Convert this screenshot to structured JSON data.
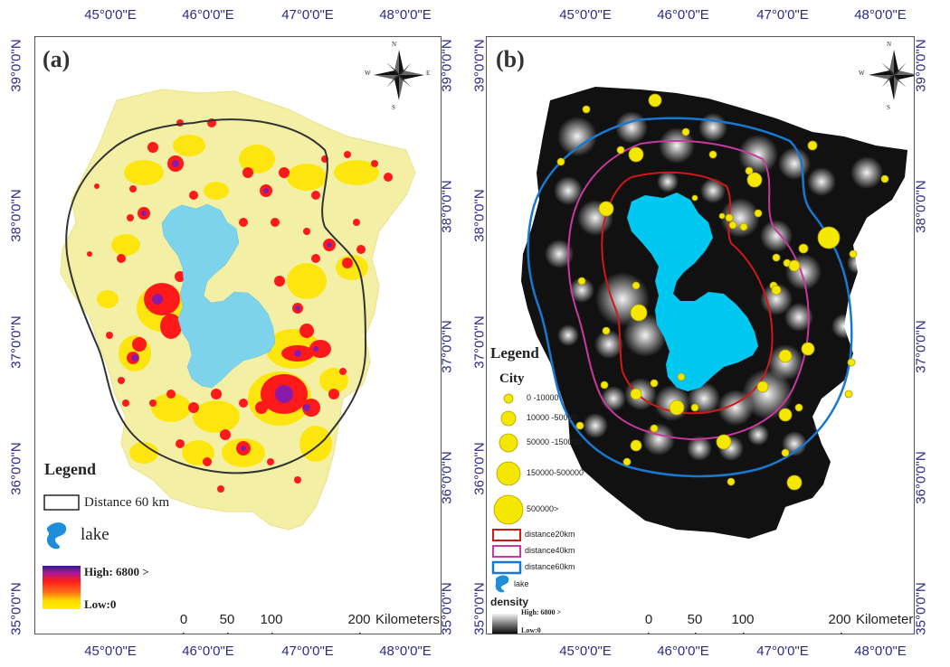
{
  "panel_a": {
    "label": "(a)",
    "top_ticks": [
      "45°0'0\"E",
      "46°0'0\"E",
      "47°0'0\"E",
      "48°0'0\"E"
    ],
    "bottom_ticks": [
      "45°0'0\"E",
      "46°0'0\"E",
      "47°0'0\"E",
      "48°0'0\"E"
    ],
    "left_ticks": [
      "39°0'0\"N",
      "38°0'0\"N",
      "37°0'0\"N",
      "36°0'0\"N",
      "35°0'0\"N"
    ],
    "right_ticks": [
      "39°0'0\"N",
      "38°0'0\"N",
      "37°0'0\"N",
      "36°0'0\"N",
      "35°0'0\"N"
    ],
    "compass": {
      "n": "N",
      "s": "S",
      "e": "E",
      "w": "W"
    },
    "legend": {
      "title": "Legend",
      "distance": "Distance 60 km",
      "lake": "lake",
      "high": "High: 6800 >",
      "low": "Low:0"
    },
    "scale": {
      "ticks": [
        "0",
        "50",
        "100",
        "200"
      ],
      "unit": "Kilometers"
    }
  },
  "panel_b": {
    "label": "(b)",
    "top_ticks": [
      "45°0'0\"E",
      "46°0'0\"E",
      "47°0'0\"E",
      "48°0'0\"E"
    ],
    "bottom_ticks": [
      "45°0'0\"E",
      "46°0'0\"E",
      "47°0'0\"E",
      "48°0'0\"E"
    ],
    "left_ticks": [
      "39°0'0\"N",
      "38°0'0\"N",
      "37°0'0\"N",
      "36°0'0\"N",
      "35°0'0\"N"
    ],
    "right_ticks": [
      "39°0'0\"N",
      "38°0'0\"N",
      "37°0'0\"N",
      "36°0'0\"N",
      "35°0'0\"N"
    ],
    "compass": {
      "n": "N",
      "s": "S",
      "e": "E",
      "w": "W"
    },
    "legend": {
      "title": "Legend",
      "city_title": "City",
      "city_classes": [
        "0 -10000",
        "10000 -50000",
        "50000 -150000",
        "150000-500000",
        "500000>"
      ],
      "distance20": "distance20km",
      "distance40": "distance40km",
      "distance60": "distance60km",
      "lake": "lake",
      "density_title": "density",
      "high": "High: 6800 >",
      "low": "Low:0"
    },
    "scale": {
      "ticks": [
        "0",
        "50",
        "100",
        "200"
      ],
      "unit": "Kilometers"
    }
  },
  "colors": {
    "tick_text": "#2b2b8c",
    "lake": "#7ed3ec",
    "lake_b": "#00c8f0",
    "background_a": "#f3f0a6",
    "hotspot_red": "#ff1a1a",
    "hotspot_purple": "#8a1aa8",
    "city_yellow": "#f4e800",
    "ring20": "#d01818",
    "ring40": "#c838a0",
    "ring60": "#1878d0"
  }
}
